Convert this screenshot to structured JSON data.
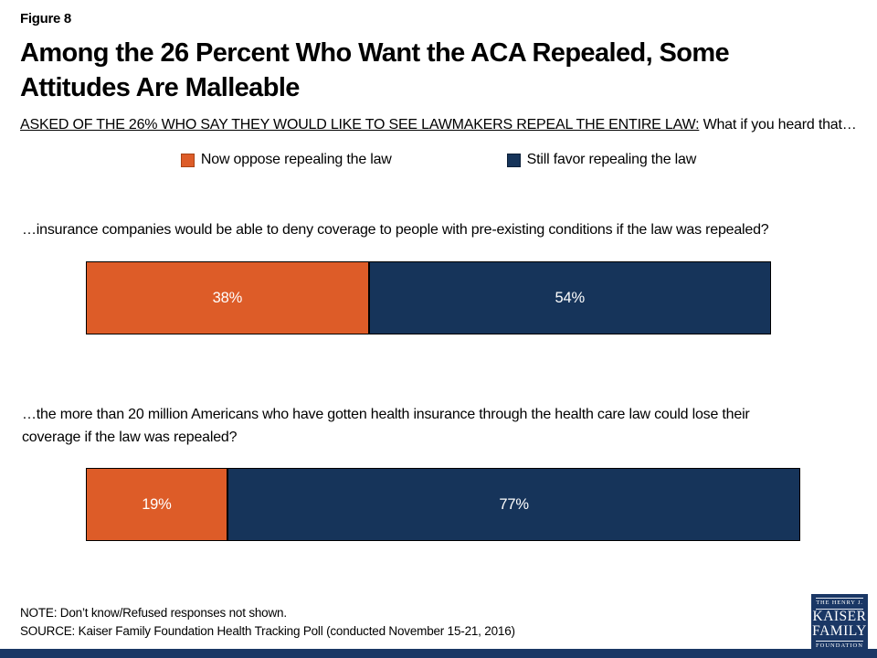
{
  "figure_label": "Figure 8",
  "title": "Among the 26 Percent Who Want the ACA Repealed, Some Attitudes Are Malleable",
  "subtitle": {
    "underlined": "ASKED OF THE 26% WHO SAY THEY WOULD LIKE TO SEE LAWMAKERS REPEAL THE ENTIRE LAW:",
    "rest": " What if you heard that…"
  },
  "chart_data": {
    "type": "bar",
    "orientation": "horizontal",
    "stacked": true,
    "unit": "percent",
    "xlim": [
      0,
      100
    ],
    "grid": false,
    "legend_position": "top",
    "series_names": [
      "Now oppose repealing the law",
      "Still favor repealing the law"
    ],
    "series_colors": [
      "#dd5c28",
      "#16345a"
    ],
    "rows": [
      {
        "question": "…insurance companies would be able to deny coverage to people with pre-existing conditions if the law was repealed?",
        "values": [
          38,
          54
        ],
        "value_labels": [
          "38%",
          "54%"
        ]
      },
      {
        "question": "…the more than 20 million Americans who have gotten health insurance through the health care law could lose their coverage if the law was repealed?",
        "values": [
          19,
          77
        ],
        "value_labels": [
          "19%",
          "77%"
        ]
      }
    ]
  },
  "legend": [
    {
      "label": "Now oppose repealing the law",
      "color": "#dd5c28"
    },
    {
      "label": "Still favor repealing the law",
      "color": "#16345a"
    }
  ],
  "footer": {
    "note": "NOTE: Don’t know/Refused responses not shown.",
    "source": "SOURCE: Kaiser Family Foundation Health Tracking Poll (conducted November 15-21, 2016)"
  },
  "logo": {
    "line1": "THE HENRY J.",
    "line2": "KAISER",
    "line3": "FAMILY",
    "line4": "FOUNDATION"
  },
  "colors": {
    "accent_orange": "#dd5c28",
    "accent_navy": "#16345a",
    "logo_navy": "#1a3765",
    "text": "#000000",
    "background": "#ffffff"
  }
}
